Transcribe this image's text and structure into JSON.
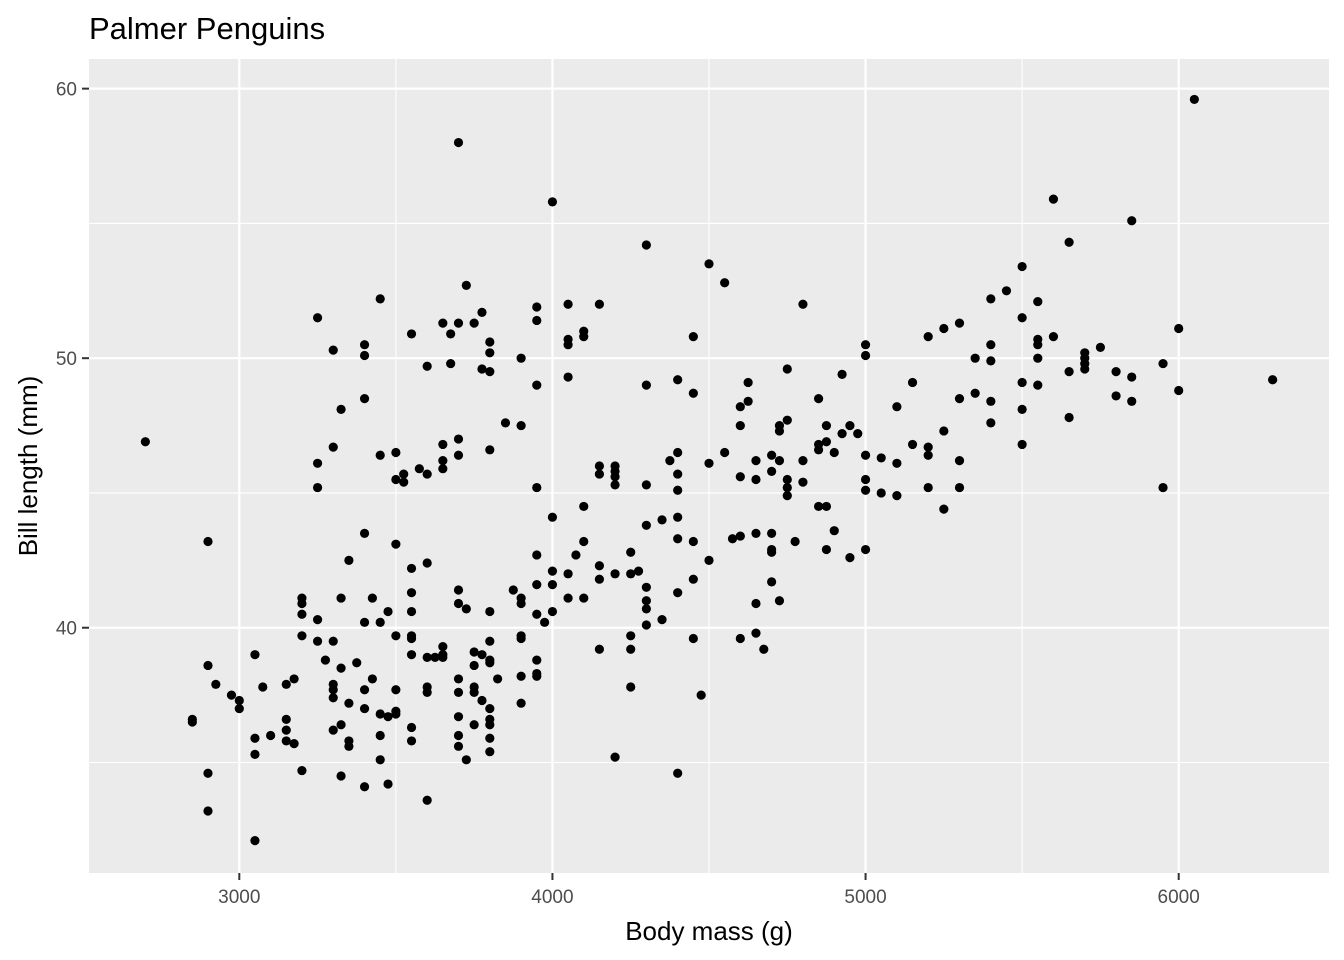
{
  "chart_data": {
    "type": "scatter",
    "title": "Palmer Penguins",
    "xlabel": "Body mass (g)",
    "ylabel": "Bill length (mm)",
    "xlim": [
      2520,
      6480
    ],
    "ylim": [
      30.9,
      61.1
    ],
    "x_ticks": [
      3000,
      4000,
      5000,
      6000
    ],
    "y_ticks": [
      40,
      50,
      60
    ],
    "grid": true,
    "legend": "none",
    "colors": {
      "panel": "#ebebeb",
      "grid": "#ffffff",
      "point": "#000000",
      "tick": "#4d4d4d",
      "tick_mark": "#333333"
    },
    "points": [
      [
        2700,
        46.9
      ],
      [
        2850,
        36.6
      ],
      [
        2850,
        36.5
      ],
      [
        2900,
        43.2
      ],
      [
        2900,
        38.6
      ],
      [
        2900,
        34.6
      ],
      [
        2900,
        33.2
      ],
      [
        2925,
        37.9
      ],
      [
        2975,
        37.5
      ],
      [
        3000,
        37.3
      ],
      [
        3000,
        37.0
      ],
      [
        3050,
        39.0
      ],
      [
        3050,
        35.9
      ],
      [
        3050,
        35.3
      ],
      [
        3050,
        32.1
      ],
      [
        3075,
        37.8
      ],
      [
        3100,
        36.0
      ],
      [
        3150,
        37.9
      ],
      [
        3150,
        36.6
      ],
      [
        3150,
        36.2
      ],
      [
        3150,
        35.8
      ],
      [
        3175,
        38.1
      ],
      [
        3175,
        35.7
      ],
      [
        3200,
        41.1
      ],
      [
        3200,
        40.9
      ],
      [
        3200,
        40.5
      ],
      [
        3200,
        39.7
      ],
      [
        3200,
        34.7
      ],
      [
        3250,
        51.5
      ],
      [
        3250,
        46.1
      ],
      [
        3250,
        45.2
      ],
      [
        3250,
        40.3
      ],
      [
        3250,
        39.5
      ],
      [
        3275,
        38.8
      ],
      [
        3300,
        50.3
      ],
      [
        3300,
        46.7
      ],
      [
        3300,
        37.7
      ],
      [
        3300,
        37.9
      ],
      [
        3300,
        37.4
      ],
      [
        3300,
        39.5
      ],
      [
        3300,
        36.2
      ],
      [
        3325,
        48.1
      ],
      [
        3325,
        41.1
      ],
      [
        3325,
        38.5
      ],
      [
        3325,
        36.4
      ],
      [
        3325,
        34.5
      ],
      [
        3350,
        42.5
      ],
      [
        3350,
        37.2
      ],
      [
        3350,
        35.8
      ],
      [
        3350,
        35.6
      ],
      [
        3375,
        38.7
      ],
      [
        3400,
        50.5
      ],
      [
        3400,
        50.1
      ],
      [
        3400,
        48.5
      ],
      [
        3400,
        43.5
      ],
      [
        3400,
        40.2
      ],
      [
        3400,
        37.7
      ],
      [
        3400,
        37.0
      ],
      [
        3400,
        34.1
      ],
      [
        3425,
        41.1
      ],
      [
        3425,
        38.1
      ],
      [
        3450,
        52.2
      ],
      [
        3450,
        46.4
      ],
      [
        3450,
        40.2
      ],
      [
        3450,
        36.8
      ],
      [
        3450,
        36.0
      ],
      [
        3450,
        35.1
      ],
      [
        3475,
        40.6
      ],
      [
        3475,
        36.7
      ],
      [
        3475,
        34.2
      ],
      [
        3500,
        46.5
      ],
      [
        3500,
        45.5
      ],
      [
        3500,
        43.1
      ],
      [
        3500,
        39.7
      ],
      [
        3500,
        37.7
      ],
      [
        3500,
        36.9
      ],
      [
        3500,
        36.8
      ],
      [
        3525,
        45.7
      ],
      [
        3525,
        45.4
      ],
      [
        3550,
        50.9
      ],
      [
        3550,
        42.2
      ],
      [
        3550,
        41.3
      ],
      [
        3550,
        40.6
      ],
      [
        3550,
        39.7
      ],
      [
        3550,
        39.6
      ],
      [
        3550,
        39.0
      ],
      [
        3550,
        36.3
      ],
      [
        3550,
        35.8
      ],
      [
        3575,
        45.9
      ],
      [
        3600,
        49.7
      ],
      [
        3600,
        45.7
      ],
      [
        3600,
        42.4
      ],
      [
        3600,
        38.9
      ],
      [
        3600,
        37.8
      ],
      [
        3600,
        37.6
      ],
      [
        3600,
        33.6
      ],
      [
        3625,
        38.9
      ],
      [
        3650,
        39.0
      ],
      [
        3650,
        38.9
      ],
      [
        3650,
        51.3
      ],
      [
        3650,
        46.8
      ],
      [
        3650,
        46.2
      ],
      [
        3650,
        45.9
      ],
      [
        3650,
        39.3
      ],
      [
        3675,
        50.9
      ],
      [
        3675,
        49.8
      ],
      [
        3700,
        58.0
      ],
      [
        3700,
        51.3
      ],
      [
        3700,
        47.0
      ],
      [
        3700,
        46.4
      ],
      [
        3700,
        41.4
      ],
      [
        3700,
        40.9
      ],
      [
        3700,
        38.1
      ],
      [
        3700,
        37.6
      ],
      [
        3700,
        36.7
      ],
      [
        3700,
        36.0
      ],
      [
        3700,
        35.6
      ],
      [
        3725,
        52.7
      ],
      [
        3725,
        40.7
      ],
      [
        3725,
        35.1
      ],
      [
        3750,
        51.3
      ],
      [
        3750,
        39.1
      ],
      [
        3750,
        38.6
      ],
      [
        3750,
        37.8
      ],
      [
        3750,
        37.6
      ],
      [
        3750,
        36.4
      ],
      [
        3775,
        51.7
      ],
      [
        3775,
        49.6
      ],
      [
        3775,
        39.0
      ],
      [
        3775,
        37.3
      ],
      [
        3800,
        50.6
      ],
      [
        3800,
        50.2
      ],
      [
        3800,
        49.5
      ],
      [
        3800,
        46.6
      ],
      [
        3800,
        40.6
      ],
      [
        3800,
        39.5
      ],
      [
        3800,
        38.8
      ],
      [
        3800,
        38.7
      ],
      [
        3800,
        37.0
      ],
      [
        3800,
        36.6
      ],
      [
        3800,
        36.4
      ],
      [
        3800,
        35.9
      ],
      [
        3800,
        35.4
      ],
      [
        3825,
        38.1
      ],
      [
        3850,
        47.6
      ],
      [
        3875,
        41.4
      ],
      [
        3900,
        50.0
      ],
      [
        3900,
        47.5
      ],
      [
        3900,
        41.1
      ],
      [
        3900,
        40.9
      ],
      [
        3900,
        39.7
      ],
      [
        3900,
        39.6
      ],
      [
        3900,
        38.2
      ],
      [
        3900,
        37.2
      ],
      [
        3950,
        51.9
      ],
      [
        3950,
        51.4
      ],
      [
        3950,
        49.0
      ],
      [
        3950,
        45.2
      ],
      [
        3950,
        42.7
      ],
      [
        3950,
        41.6
      ],
      [
        3950,
        40.5
      ],
      [
        3950,
        38.8
      ],
      [
        3950,
        38.3
      ],
      [
        3950,
        38.2
      ],
      [
        3975,
        40.2
      ],
      [
        4000,
        55.8
      ],
      [
        4000,
        44.1
      ],
      [
        4000,
        42.1
      ],
      [
        4000,
        41.6
      ],
      [
        4000,
        40.6
      ],
      [
        4050,
        52.0
      ],
      [
        4050,
        50.7
      ],
      [
        4050,
        50.5
      ],
      [
        4050,
        49.3
      ],
      [
        4050,
        41.1
      ],
      [
        4050,
        42.0
      ],
      [
        4075,
        42.7
      ],
      [
        4100,
        51.0
      ],
      [
        4100,
        50.8
      ],
      [
        4100,
        44.5
      ],
      [
        4100,
        43.2
      ],
      [
        4100,
        41.1
      ],
      [
        4150,
        52.0
      ],
      [
        4150,
        46.0
      ],
      [
        4150,
        45.7
      ],
      [
        4150,
        42.3
      ],
      [
        4150,
        41.8
      ],
      [
        4150,
        39.2
      ],
      [
        4200,
        46.0
      ],
      [
        4200,
        45.8
      ],
      [
        4200,
        45.6
      ],
      [
        4200,
        45.3
      ],
      [
        4200,
        42.0
      ],
      [
        4200,
        35.2
      ],
      [
        4250,
        42.8
      ],
      [
        4250,
        42.0
      ],
      [
        4250,
        39.7
      ],
      [
        4250,
        39.2
      ],
      [
        4250,
        37.8
      ],
      [
        4275,
        42.1
      ],
      [
        4300,
        54.2
      ],
      [
        4300,
        49.0
      ],
      [
        4300,
        45.3
      ],
      [
        4300,
        43.8
      ],
      [
        4300,
        41.5
      ],
      [
        4300,
        41.0
      ],
      [
        4300,
        40.7
      ],
      [
        4300,
        40.1
      ],
      [
        4350,
        44.0
      ],
      [
        4350,
        40.3
      ],
      [
        4375,
        46.2
      ],
      [
        4400,
        49.2
      ],
      [
        4400,
        46.5
      ],
      [
        4400,
        45.7
      ],
      [
        4400,
        45.1
      ],
      [
        4400,
        44.1
      ],
      [
        4400,
        43.3
      ],
      [
        4400,
        41.3
      ],
      [
        4400,
        34.6
      ],
      [
        4450,
        50.8
      ],
      [
        4450,
        48.7
      ],
      [
        4450,
        43.2
      ],
      [
        4450,
        41.8
      ],
      [
        4450,
        39.6
      ],
      [
        4475,
        37.5
      ],
      [
        4500,
        53.5
      ],
      [
        4500,
        46.1
      ],
      [
        4500,
        42.5
      ],
      [
        4550,
        52.8
      ],
      [
        4550,
        46.5
      ],
      [
        4575,
        43.3
      ],
      [
        4600,
        48.2
      ],
      [
        4600,
        47.5
      ],
      [
        4600,
        45.6
      ],
      [
        4600,
        43.4
      ],
      [
        4600,
        39.6
      ],
      [
        4625,
        49.1
      ],
      [
        4625,
        48.4
      ],
      [
        4650,
        46.2
      ],
      [
        4650,
        45.5
      ],
      [
        4650,
        43.5
      ],
      [
        4650,
        40.9
      ],
      [
        4650,
        39.8
      ],
      [
        4675,
        39.2
      ],
      [
        4700,
        46.4
      ],
      [
        4700,
        45.8
      ],
      [
        4700,
        43.5
      ],
      [
        4700,
        42.9
      ],
      [
        4700,
        42.8
      ],
      [
        4700,
        41.7
      ],
      [
        4725,
        47.5
      ],
      [
        4725,
        47.3
      ],
      [
        4725,
        46.2
      ],
      [
        4725,
        41.0
      ],
      [
        4750,
        49.6
      ],
      [
        4750,
        47.7
      ],
      [
        4750,
        45.5
      ],
      [
        4750,
        45.2
      ],
      [
        4750,
        44.9
      ],
      [
        4775,
        43.2
      ],
      [
        4800,
        52.0
      ],
      [
        4800,
        46.2
      ],
      [
        4800,
        45.4
      ],
      [
        4850,
        48.5
      ],
      [
        4850,
        46.8
      ],
      [
        4850,
        46.6
      ],
      [
        4850,
        44.5
      ],
      [
        4875,
        47.5
      ],
      [
        4875,
        46.9
      ],
      [
        4875,
        44.5
      ],
      [
        4875,
        42.9
      ],
      [
        4900,
        46.5
      ],
      [
        4900,
        43.6
      ],
      [
        4925,
        49.4
      ],
      [
        4925,
        47.2
      ],
      [
        4950,
        47.5
      ],
      [
        4950,
        42.6
      ],
      [
        4975,
        47.2
      ],
      [
        5000,
        50.5
      ],
      [
        5000,
        50.1
      ],
      [
        5000,
        46.4
      ],
      [
        5000,
        45.5
      ],
      [
        5000,
        45.1
      ],
      [
        5000,
        42.9
      ],
      [
        5050,
        46.3
      ],
      [
        5050,
        45.0
      ],
      [
        5100,
        48.2
      ],
      [
        5100,
        46.1
      ],
      [
        5100,
        44.9
      ],
      [
        5150,
        49.1
      ],
      [
        5150,
        46.8
      ],
      [
        5200,
        50.8
      ],
      [
        5200,
        46.7
      ],
      [
        5200,
        46.4
      ],
      [
        5200,
        45.2
      ],
      [
        5250,
        51.1
      ],
      [
        5250,
        47.3
      ],
      [
        5250,
        44.4
      ],
      [
        5300,
        51.3
      ],
      [
        5300,
        48.5
      ],
      [
        5300,
        46.2
      ],
      [
        5300,
        45.2
      ],
      [
        5350,
        50.0
      ],
      [
        5350,
        48.7
      ],
      [
        5400,
        52.2
      ],
      [
        5400,
        50.5
      ],
      [
        5400,
        49.9
      ],
      [
        5400,
        48.4
      ],
      [
        5400,
        47.6
      ],
      [
        5450,
        52.5
      ],
      [
        5500,
        53.4
      ],
      [
        5500,
        51.5
      ],
      [
        5500,
        49.1
      ],
      [
        5500,
        48.1
      ],
      [
        5500,
        46.8
      ],
      [
        5550,
        52.1
      ],
      [
        5550,
        50.7
      ],
      [
        5550,
        50.5
      ],
      [
        5550,
        50.0
      ],
      [
        5550,
        49.0
      ],
      [
        5600,
        55.9
      ],
      [
        5600,
        50.8
      ],
      [
        5650,
        54.3
      ],
      [
        5650,
        49.5
      ],
      [
        5650,
        47.8
      ],
      [
        5700,
        50.2
      ],
      [
        5700,
        50.0
      ],
      [
        5700,
        49.8
      ],
      [
        5700,
        49.6
      ],
      [
        5750,
        50.4
      ],
      [
        5800,
        49.5
      ],
      [
        5800,
        48.6
      ],
      [
        5850,
        55.1
      ],
      [
        5850,
        49.3
      ],
      [
        5850,
        48.4
      ],
      [
        5950,
        49.8
      ],
      [
        5950,
        45.2
      ],
      [
        6000,
        51.1
      ],
      [
        6000,
        48.8
      ],
      [
        6050,
        59.6
      ],
      [
        6300,
        49.2
      ]
    ]
  }
}
